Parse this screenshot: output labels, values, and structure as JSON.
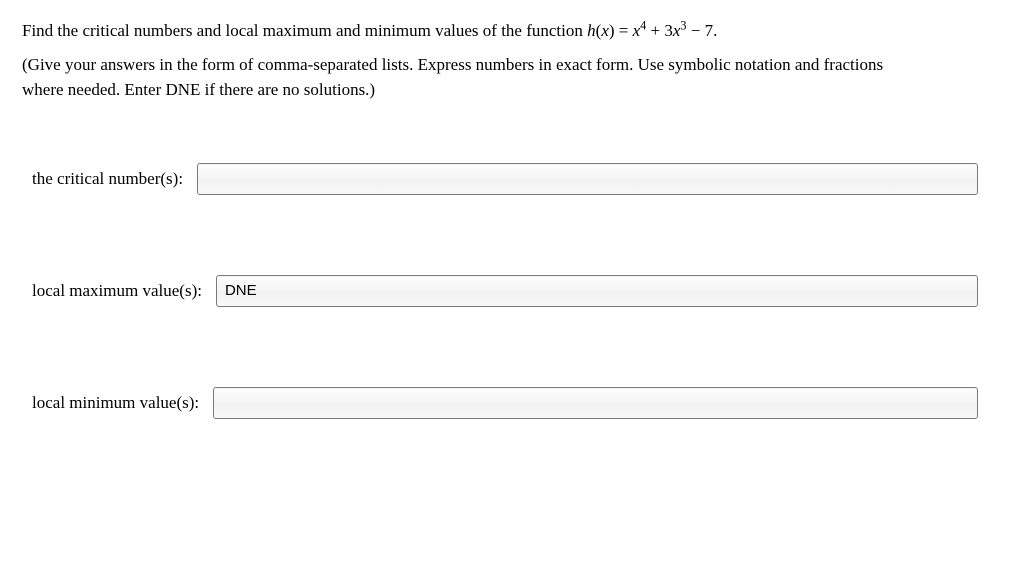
{
  "problem": {
    "prefix": "Find the critical numbers and local maximum and minimum values of the function ",
    "func_head": "h",
    "func_open": "(",
    "func_var": "x",
    "func_close": ") = ",
    "term1_var": "x",
    "term1_exp": "4",
    "plus": " + 3",
    "term2_var": "x",
    "term2_exp": "3",
    "tail": " − 7."
  },
  "instructions": {
    "line1": "(Give your answers in the form of comma-separated lists. Express numbers in exact form. Use symbolic notation and fractions",
    "line2": "where needed. Enter DNE if there are no solutions.)"
  },
  "fields": {
    "critical": {
      "label": "the critical number(s):",
      "value": ""
    },
    "localmax": {
      "label": "local maximum value(s):",
      "value": "DNE"
    },
    "localmin": {
      "label": "local minimum value(s):",
      "value": ""
    }
  },
  "style": {
    "input_border": "#7a7a7a",
    "text_color": "#000000",
    "background": "#ffffff"
  }
}
